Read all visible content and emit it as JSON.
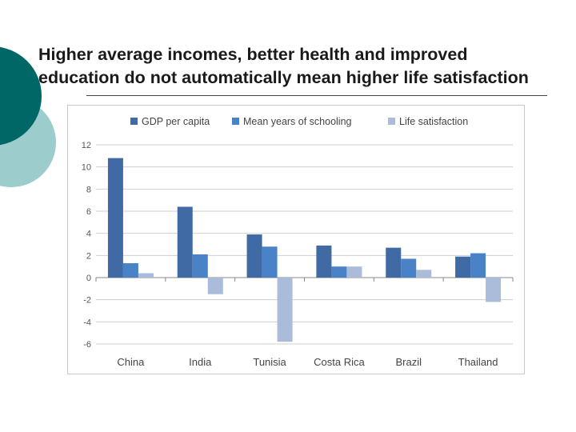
{
  "slide": {
    "title_lines": [
      "Higher average incomes, better health and improved",
      "education do not automatically mean higher life satisfaction"
    ]
  },
  "colors": {
    "deco_dark": "#006666",
    "deco_light": "#9ccccc"
  },
  "chart_data": {
    "type": "bar",
    "title": "",
    "xlabel": "",
    "ylabel": "",
    "categories": [
      "China",
      "India",
      "Tunisia",
      "Costa Rica",
      "Brazil",
      "Thailand"
    ],
    "series": [
      {
        "name": "GDP per capita",
        "color": "#3f6aa4",
        "values": [
          10.8,
          6.4,
          3.9,
          2.9,
          2.7,
          1.9
        ]
      },
      {
        "name": "Mean years of schooling",
        "color": "#4a82c8",
        "values": [
          1.3,
          2.1,
          2.8,
          1.0,
          1.7,
          2.2
        ]
      },
      {
        "name": "Life satisfaction",
        "color": "#aabcda",
        "values": [
          0.4,
          -1.5,
          -5.8,
          1.0,
          0.7,
          -2.2
        ]
      }
    ],
    "ylim": [
      -6,
      12
    ],
    "yticks": [
      12,
      10,
      8,
      6,
      4,
      2,
      0,
      -2,
      -4,
      -6
    ],
    "grid": true,
    "legend_position": "top"
  }
}
